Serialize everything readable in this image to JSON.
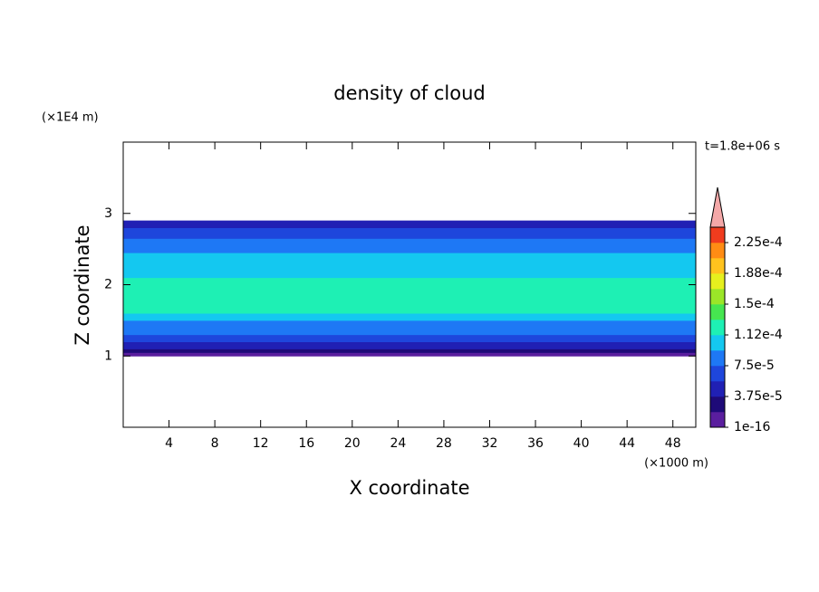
{
  "chart_data": {
    "type": "contour",
    "title": "density of cloud",
    "xlabel": "X coordinate",
    "ylabel": "Z coordinate",
    "x_unit_label": "(×1000 m)",
    "y_unit_label": "(×1E4 m)",
    "time_label": "t=1.8e+06 s",
    "xlim": [
      0,
      50
    ],
    "xticks": [
      4,
      8,
      12,
      16,
      20,
      24,
      28,
      32,
      36,
      40,
      44,
      48
    ],
    "ylim": [
      0,
      4
    ],
    "yticks": [
      1,
      2,
      3
    ],
    "z_edges": [
      1.0,
      1.05,
      1.1,
      1.2,
      1.3,
      1.5,
      1.6,
      2.1,
      2.45,
      2.65,
      2.8,
      2.9
    ],
    "values": [
      9.4e-06,
      2.8e-05,
      4.7e-05,
      6.6e-05,
      8.4e-05,
      0.000103,
      0.000122,
      0.000103,
      8.4e-05,
      6.6e-05,
      4.7e-05
    ],
    "colorbar": {
      "clim": [
        1e-16,
        0.00024375
      ],
      "colors": [
        "#5a1e9e",
        "#1e0a78",
        "#2020b4",
        "#1e46dc",
        "#1e78f5",
        "#14c8f0",
        "#1ef0b4",
        "#46e650",
        "#9be628",
        "#e6f01e",
        "#ffc31e",
        "#ff8c14",
        "#f03c1e"
      ],
      "extend_color": "#f4a8a8",
      "ticks": [
        {
          "value": 1e-16,
          "label": "1e-16"
        },
        {
          "value": 3.75e-05,
          "label": "3.75e-5"
        },
        {
          "value": 7.5e-05,
          "label": "7.5e-5"
        },
        {
          "value": 0.0001125,
          "label": "1.12e-4"
        },
        {
          "value": 0.00015,
          "label": "1.5e-4"
        },
        {
          "value": 0.0001875,
          "label": "1.88e-4"
        },
        {
          "value": 0.000225,
          "label": "2.25e-4"
        }
      ]
    }
  }
}
